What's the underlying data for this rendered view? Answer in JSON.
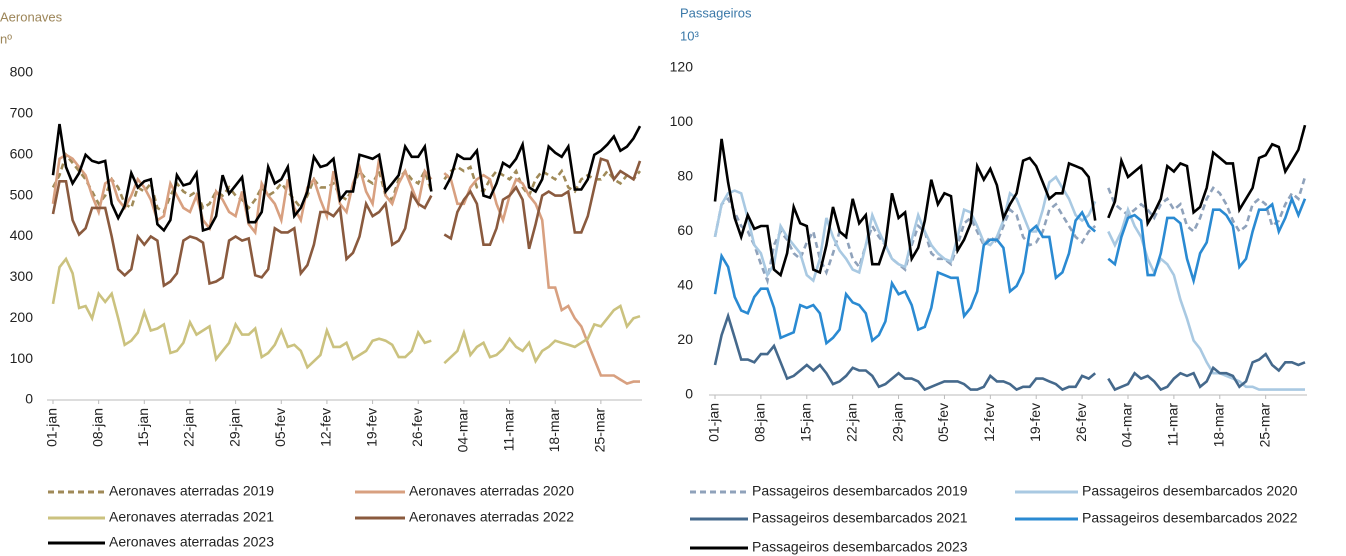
{
  "chart_data": [
    {
      "type": "line",
      "y_label": "Aeronaves",
      "y_unit": "nº",
      "label_color": "#9c8558",
      "categories": [
        "01-jan",
        null,
        null,
        null,
        null,
        null,
        null,
        "08-jan",
        null,
        null,
        null,
        null,
        null,
        null,
        "15-jan",
        null,
        null,
        null,
        null,
        null,
        null,
        "22-jan",
        null,
        null,
        null,
        null,
        null,
        null,
        "29-jan",
        null,
        null,
        null,
        null,
        null,
        null,
        "05-fev",
        null,
        null,
        null,
        null,
        null,
        null,
        "12-fev",
        null,
        null,
        null,
        null,
        null,
        null,
        "19-fev",
        null,
        null,
        null,
        null,
        null,
        null,
        "26-fev",
        null,
        null,
        null,
        null,
        null,
        null,
        "04-mar",
        null,
        null,
        null,
        null,
        null,
        null,
        "11-mar",
        null,
        null,
        null,
        null,
        null,
        null,
        "18-mar",
        null,
        null,
        null,
        null,
        null,
        null,
        "25-mar",
        null,
        null,
        null,
        null,
        null,
        null
      ],
      "ylim": [
        0,
        800
      ],
      "yticks": [
        0,
        100,
        200,
        300,
        400,
        500,
        600,
        700,
        800
      ],
      "series": [
        {
          "name": "Aeronaves aterradas 2019",
          "color": "#a08a58",
          "style": "dashed",
          "values": [
            520,
            550,
            600,
            580,
            560,
            540,
            510,
            480,
            500,
            540,
            520,
            480,
            470,
            520,
            510,
            530,
            470,
            460,
            500,
            530,
            510,
            500,
            510,
            470,
            480,
            510,
            500,
            520,
            500,
            490,
            470,
            490,
            520,
            500,
            510,
            530,
            510,
            490,
            470,
            500,
            540,
            520,
            520,
            530,
            500,
            490,
            520,
            560,
            540,
            530,
            560,
            500,
            490,
            540,
            560,
            540,
            530,
            560,
            510,
            null,
            540,
            560,
            570,
            560,
            570,
            520,
            510,
            540,
            560,
            550,
            540,
            560,
            520,
            500,
            540,
            560,
            550,
            540,
            560,
            520,
            510,
            540,
            550,
            540,
            540,
            560,
            540,
            530,
            550,
            540,
            560
          ]
        },
        {
          "name": "Aeronaves aterradas 2020",
          "color": "#d8a080",
          "style": "solid",
          "values": [
            480,
            590,
            600,
            590,
            570,
            550,
            500,
            460,
            530,
            540,
            490,
            470,
            500,
            540,
            520,
            490,
            440,
            450,
            530,
            500,
            470,
            460,
            500,
            440,
            420,
            510,
            490,
            460,
            450,
            510,
            430,
            410,
            530,
            500,
            480,
            440,
            540,
            470,
            440,
            520,
            540,
            490,
            450,
            560,
            480,
            460,
            530,
            570,
            510,
            480,
            590,
            500,
            480,
            530,
            560,
            520,
            480,
            560,
            540,
            null,
            555,
            540,
            480,
            480,
            520,
            540,
            550,
            540,
            480,
            440,
            500,
            540,
            530,
            500,
            480,
            440,
            275,
            275,
            220,
            230,
            200,
            180,
            140,
            100,
            60,
            60,
            60,
            50,
            40,
            45,
            45
          ]
        },
        {
          "name": "Aeronaves aterradas 2021",
          "color": "#cbc27f",
          "style": "solid",
          "values": [
            235,
            325,
            345,
            310,
            225,
            230,
            200,
            260,
            240,
            260,
            200,
            135,
            145,
            165,
            215,
            170,
            175,
            185,
            115,
            120,
            140,
            190,
            160,
            170,
            180,
            100,
            120,
            140,
            185,
            160,
            160,
            175,
            105,
            115,
            135,
            170,
            130,
            135,
            120,
            80,
            95,
            110,
            170,
            130,
            130,
            140,
            100,
            110,
            120,
            145,
            150,
            145,
            135,
            105,
            105,
            120,
            165,
            140,
            145,
            null,
            90,
            105,
            120,
            165,
            110,
            130,
            140,
            105,
            110,
            125,
            150,
            130,
            120,
            140,
            95,
            120,
            130,
            145,
            140,
            135,
            130,
            140,
            150,
            185,
            180,
            200,
            220,
            230,
            180,
            200,
            205
          ]
        },
        {
          "name": "Aeronaves aterradas 2022",
          "color": "#8a5a3e",
          "style": "solid",
          "values": [
            455,
            535,
            535,
            440,
            405,
            420,
            470,
            470,
            470,
            400,
            320,
            305,
            320,
            400,
            380,
            400,
            390,
            280,
            290,
            310,
            390,
            400,
            395,
            385,
            285,
            290,
            300,
            390,
            400,
            390,
            395,
            305,
            300,
            320,
            420,
            410,
            410,
            420,
            310,
            330,
            380,
            460,
            460,
            450,
            470,
            345,
            360,
            400,
            480,
            450,
            460,
            480,
            380,
            390,
            420,
            505,
            480,
            470,
            500,
            null,
            405,
            395,
            460,
            490,
            510,
            480,
            380,
            380,
            420,
            490,
            500,
            520,
            490,
            370,
            430,
            500,
            510,
            500,
            500,
            510,
            410,
            410,
            450,
            520,
            590,
            585,
            540,
            560,
            550,
            540,
            585
          ]
        },
        {
          "name": "Aeronaves aterradas 2023",
          "color": "#000000",
          "style": "solid",
          "values": [
            550,
            675,
            570,
            530,
            555,
            600,
            585,
            580,
            585,
            480,
            445,
            475,
            555,
            520,
            535,
            540,
            430,
            415,
            440,
            550,
            525,
            530,
            555,
            415,
            420,
            450,
            550,
            505,
            525,
            545,
            435,
            435,
            460,
            570,
            530,
            540,
            570,
            450,
            470,
            510,
            595,
            570,
            575,
            590,
            490,
            510,
            510,
            600,
            595,
            590,
            600,
            510,
            530,
            550,
            620,
            595,
            595,
            620,
            510,
            null,
            515,
            545,
            600,
            590,
            590,
            610,
            500,
            495,
            530,
            580,
            570,
            590,
            625,
            520,
            510,
            540,
            620,
            605,
            595,
            620,
            515,
            515,
            540,
            600,
            610,
            625,
            645,
            610,
            620,
            640,
            670
          ]
        }
      ]
    },
    {
      "type": "line",
      "y_label": "Passageiros",
      "y_unit": "10³",
      "label_color": "#3a78a8",
      "categories": [
        "01-jan",
        null,
        null,
        null,
        null,
        null,
        null,
        "08-jan",
        null,
        null,
        null,
        null,
        null,
        null,
        "15-jan",
        null,
        null,
        null,
        null,
        null,
        null,
        "22-jan",
        null,
        null,
        null,
        null,
        null,
        null,
        "29-jan",
        null,
        null,
        null,
        null,
        null,
        null,
        "05-fev",
        null,
        null,
        null,
        null,
        null,
        null,
        "12-fev",
        null,
        null,
        null,
        null,
        null,
        null,
        "19-fev",
        null,
        null,
        null,
        null,
        null,
        null,
        "26-fev",
        null,
        null,
        null,
        null,
        null,
        null,
        "04-mar",
        null,
        null,
        null,
        null,
        null,
        null,
        "11-mar",
        null,
        null,
        null,
        null,
        null,
        null,
        "18-mar",
        null,
        null,
        null,
        null,
        null,
        null,
        "25-mar",
        null,
        null,
        null,
        null,
        null,
        null
      ],
      "ylim": [
        0,
        120
      ],
      "yticks": [
        0,
        20,
        40,
        60,
        80,
        100,
        120
      ],
      "series": [
        {
          "name": "Passageiros desembarcados 2019",
          "color": "#8fa2bb",
          "style": "dashed",
          "values": [
            58,
            70,
            72,
            67,
            62,
            60,
            55,
            48,
            42,
            55,
            60,
            57,
            52,
            50,
            56,
            60,
            50,
            45,
            52,
            60,
            58,
            50,
            47,
            55,
            62,
            58,
            55,
            50,
            48,
            46,
            55,
            62,
            60,
            52,
            50,
            50,
            48,
            55,
            63,
            65,
            60,
            55,
            58,
            56,
            62,
            68,
            66,
            58,
            55,
            56,
            60,
            68,
            70,
            66,
            62,
            58,
            56,
            60,
            62,
            null,
            76,
            70,
            68,
            66,
            68,
            70,
            68,
            65,
            70,
            72,
            68,
            70,
            62,
            60,
            65,
            72,
            76,
            74,
            70,
            64,
            60,
            62,
            70,
            72,
            70,
            62,
            64,
            70,
            74,
            72,
            80
          ]
        },
        {
          "name": "Passageiros desembarcados 2020",
          "color": "#a9c9e2",
          "style": "solid",
          "values": [
            58,
            70,
            74,
            75,
            74,
            65,
            55,
            52,
            44,
            48,
            62,
            58,
            55,
            52,
            44,
            42,
            50,
            65,
            58,
            53,
            50,
            46,
            45,
            55,
            66,
            60,
            55,
            50,
            48,
            47,
            57,
            66,
            60,
            55,
            52,
            50,
            49,
            58,
            68,
            67,
            62,
            56,
            55,
            58,
            64,
            74,
            72,
            66,
            60,
            60,
            68,
            78,
            80,
            76,
            72,
            66,
            64,
            66,
            71,
            null,
            60,
            55,
            60,
            68,
            62,
            58,
            50,
            45,
            50,
            48,
            44,
            35,
            28,
            20,
            17,
            12,
            8,
            8,
            7,
            6,
            5,
            3,
            3,
            2,
            2,
            2,
            2,
            2,
            2,
            2,
            2
          ]
        },
        {
          "name": "Passageiros desembarcados 2021",
          "color": "#45698c",
          "style": "solid",
          "values": [
            11,
            22,
            29,
            21,
            13,
            13,
            12,
            15,
            15,
            18,
            12,
            6,
            7,
            9,
            11,
            9,
            11,
            8,
            4,
            5,
            7,
            10,
            9,
            9,
            7,
            3,
            4,
            6,
            8,
            6,
            6,
            5,
            2,
            3,
            4,
            5,
            5,
            5,
            4,
            2,
            2,
            3,
            7,
            5,
            5,
            4,
            2,
            3,
            3,
            6,
            6,
            5,
            4,
            2,
            3,
            3,
            7,
            6,
            8,
            null,
            6,
            2,
            3,
            4,
            8,
            6,
            7,
            5,
            2,
            3,
            6,
            8,
            7,
            8,
            3,
            5,
            10,
            8,
            8,
            7,
            3,
            5,
            12,
            13,
            15,
            11,
            9,
            12,
            12,
            11,
            12
          ]
        },
        {
          "name": "Passageiros desembarcados 2022",
          "color": "#2a8ad2",
          "style": "solid",
          "values": [
            37,
            51,
            47,
            36,
            31,
            30,
            36,
            39,
            39,
            32,
            21,
            22,
            23,
            33,
            32,
            33,
            30,
            19,
            21,
            24,
            37,
            34,
            33,
            30,
            20,
            22,
            27,
            41,
            37,
            38,
            33,
            24,
            25,
            32,
            45,
            44,
            43,
            43,
            29,
            32,
            38,
            55,
            57,
            57,
            54,
            38,
            40,
            45,
            60,
            62,
            58,
            58,
            43,
            45,
            52,
            64,
            67,
            62,
            60,
            null,
            50,
            48,
            58,
            65,
            66,
            64,
            44,
            44,
            52,
            65,
            65,
            63,
            50,
            42,
            52,
            56,
            68,
            68,
            66,
            62,
            47,
            50,
            60,
            68,
            68,
            70,
            60,
            65,
            72,
            66,
            72
          ]
        },
        {
          "name": "Passageiros desembarcados 2023",
          "color": "#000000",
          "style": "solid",
          "values": [
            71,
            94,
            78,
            65,
            58,
            66,
            61,
            62,
            62,
            46,
            44,
            52,
            69,
            63,
            62,
            46,
            45,
            55,
            69,
            60,
            58,
            72,
            63,
            66,
            48,
            48,
            55,
            74,
            65,
            67,
            50,
            54,
            64,
            79,
            70,
            74,
            73,
            53,
            57,
            63,
            84,
            79,
            83,
            77,
            65,
            70,
            74,
            86,
            87,
            84,
            78,
            72,
            74,
            74,
            85,
            84,
            83,
            80,
            64,
            null,
            65,
            71,
            86,
            80,
            82,
            84,
            63,
            67,
            72,
            84,
            82,
            85,
            84,
            67,
            69,
            76,
            89,
            87,
            85,
            85,
            68,
            72,
            76,
            87,
            88,
            92,
            91,
            82,
            86,
            90,
            99
          ]
        }
      ]
    }
  ]
}
